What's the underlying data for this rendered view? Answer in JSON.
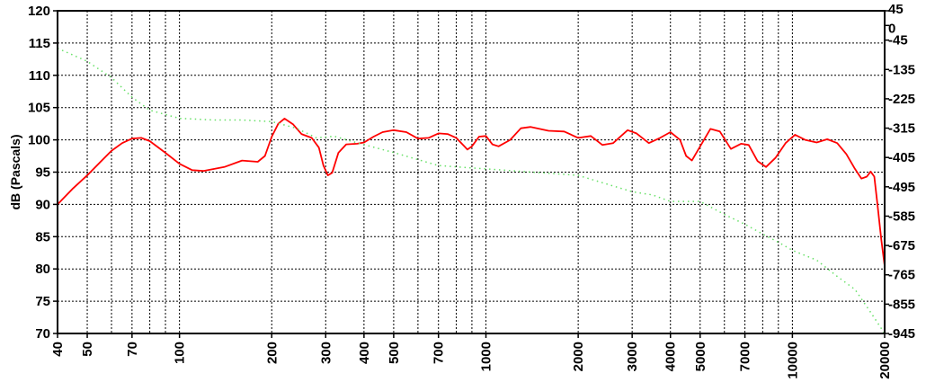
{
  "chart_data": {
    "type": "line",
    "title": "",
    "xlabel": "",
    "ylabel": "dB (Pascals)",
    "x_scale": "log",
    "xlim": [
      40,
      20000
    ],
    "ylim": [
      70,
      120
    ],
    "y2lim": [
      -945,
      45
    ],
    "grid": true,
    "x_tick_labels": [
      "40",
      "50",
      "70",
      "100",
      "200",
      "300",
      "400",
      "500",
      "700",
      "1000",
      "2000",
      "3000",
      "4000",
      "5000",
      "7000",
      "10000",
      "20000"
    ],
    "x_ticks": [
      40,
      50,
      70,
      100,
      200,
      300,
      400,
      500,
      700,
      1000,
      2000,
      3000,
      4000,
      5000,
      7000,
      10000,
      20000
    ],
    "x_grid": [
      40,
      50,
      60,
      70,
      80,
      90,
      100,
      200,
      300,
      400,
      500,
      600,
      700,
      800,
      900,
      1000,
      2000,
      3000,
      4000,
      5000,
      6000,
      7000,
      8000,
      9000,
      10000,
      20000
    ],
    "y_ticks": [
      70,
      75,
      80,
      85,
      90,
      95,
      100,
      105,
      110,
      115,
      120
    ],
    "y_tick_labels": [
      "70",
      "75",
      "80",
      "85",
      "90",
      "95",
      "100",
      "105",
      "110",
      "115",
      "120"
    ],
    "y2_ticks": [
      45,
      0,
      -45,
      -135,
      -225,
      -315,
      -405,
      -495,
      -585,
      -675,
      -765,
      -855,
      -945
    ],
    "y2_tick_labels": [
      "45",
      "0",
      "-45",
      "-135",
      "-225",
      "-315",
      "-405",
      "-495",
      "-585",
      "-675",
      "-765",
      "-855",
      "-945"
    ],
    "series": [
      {
        "axis": "left",
        "color": "#ff0000",
        "style": "solid",
        "points": [
          [
            40,
            90
          ],
          [
            45,
            92.5
          ],
          [
            50,
            94.5
          ],
          [
            55,
            96.5
          ],
          [
            60,
            98.3
          ],
          [
            65,
            99.5
          ],
          [
            70,
            100.2
          ],
          [
            75,
            100.3
          ],
          [
            80,
            99.8
          ],
          [
            90,
            98
          ],
          [
            100,
            96.3
          ],
          [
            110,
            95.3
          ],
          [
            120,
            95.2
          ],
          [
            140,
            95.8
          ],
          [
            160,
            96.8
          ],
          [
            180,
            96.6
          ],
          [
            190,
            97.5
          ],
          [
            200,
            100.5
          ],
          [
            210,
            102.5
          ],
          [
            220,
            103.3
          ],
          [
            235,
            102.4
          ],
          [
            250,
            100.9
          ],
          [
            270,
            100.3
          ],
          [
            285,
            98.8
          ],
          [
            295,
            96
          ],
          [
            305,
            94.5
          ],
          [
            315,
            94.9
          ],
          [
            330,
            98
          ],
          [
            350,
            99.3
          ],
          [
            380,
            99.4
          ],
          [
            400,
            99.6
          ],
          [
            430,
            100.5
          ],
          [
            460,
            101.2
          ],
          [
            500,
            101.5
          ],
          [
            550,
            101.2
          ],
          [
            600,
            100.2
          ],
          [
            650,
            100.3
          ],
          [
            700,
            101
          ],
          [
            750,
            100.9
          ],
          [
            800,
            100.3
          ],
          [
            850,
            99
          ],
          [
            870,
            98.5
          ],
          [
            900,
            99
          ],
          [
            950,
            100.5
          ],
          [
            1000,
            100.6
          ],
          [
            1050,
            99.3
          ],
          [
            1100,
            99
          ],
          [
            1200,
            100
          ],
          [
            1300,
            101.8
          ],
          [
            1400,
            102
          ],
          [
            1600,
            101.4
          ],
          [
            1800,
            101.3
          ],
          [
            2000,
            100.3
          ],
          [
            2200,
            100.6
          ],
          [
            2400,
            99.2
          ],
          [
            2600,
            99.5
          ],
          [
            2900,
            101.5
          ],
          [
            3100,
            101
          ],
          [
            3400,
            99.5
          ],
          [
            3700,
            100.3
          ],
          [
            4000,
            101.2
          ],
          [
            4300,
            100
          ],
          [
            4500,
            97.5
          ],
          [
            4700,
            96.8
          ],
          [
            5000,
            99
          ],
          [
            5400,
            101.7
          ],
          [
            5800,
            101.3
          ],
          [
            6300,
            98.6
          ],
          [
            6800,
            99.4
          ],
          [
            7200,
            99.2
          ],
          [
            7700,
            96.7
          ],
          [
            8200,
            95.8
          ],
          [
            8800,
            97.2
          ],
          [
            9500,
            99.5
          ],
          [
            10200,
            100.8
          ],
          [
            11000,
            100
          ],
          [
            12000,
            99.6
          ],
          [
            13000,
            100.1
          ],
          [
            14000,
            99.5
          ],
          [
            15000,
            97.8
          ],
          [
            16000,
            95.5
          ],
          [
            16800,
            94
          ],
          [
            17500,
            94.3
          ],
          [
            18000,
            95.1
          ],
          [
            18500,
            94.3
          ],
          [
            19000,
            89.5
          ],
          [
            19500,
            84.5
          ],
          [
            20000,
            80.5
          ]
        ]
      },
      {
        "axis": "right",
        "color": "#66e066",
        "style": "dotted",
        "points": [
          [
            40,
            -70
          ],
          [
            50,
            -110
          ],
          [
            60,
            -160
          ],
          [
            70,
            -220
          ],
          [
            80,
            -260
          ],
          [
            100,
            -285
          ],
          [
            130,
            -290
          ],
          [
            160,
            -290
          ],
          [
            200,
            -295
          ],
          [
            240,
            -315
          ],
          [
            280,
            -345
          ],
          [
            320,
            -340
          ],
          [
            380,
            -360
          ],
          [
            500,
            -390
          ],
          [
            700,
            -430
          ],
          [
            1000,
            -440
          ],
          [
            2000,
            -460
          ],
          [
            3000,
            -510
          ],
          [
            3500,
            -520
          ],
          [
            4000,
            -540
          ],
          [
            5000,
            -540
          ],
          [
            6000,
            -580
          ],
          [
            7000,
            -610
          ],
          [
            8000,
            -640
          ],
          [
            9000,
            -665
          ],
          [
            10000,
            -690
          ],
          [
            12000,
            -720
          ],
          [
            14000,
            -770
          ],
          [
            16000,
            -810
          ],
          [
            18000,
            -880
          ],
          [
            20000,
            -945
          ]
        ]
      }
    ]
  }
}
